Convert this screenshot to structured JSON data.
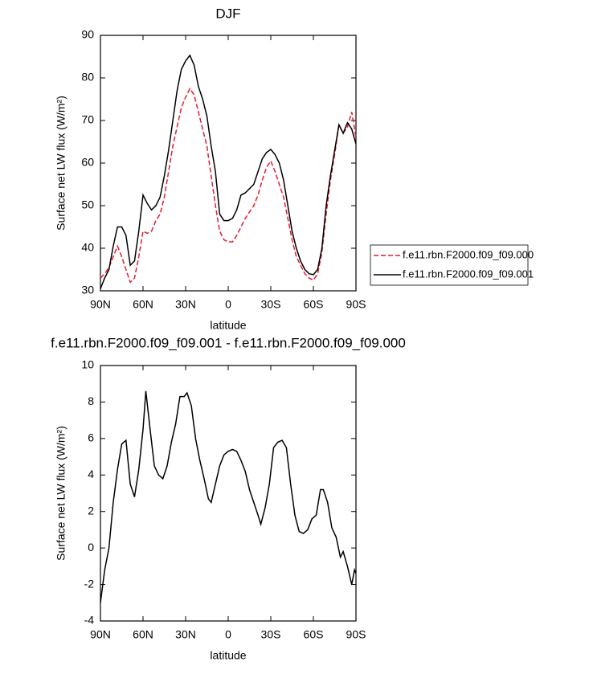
{
  "chart_data": [
    {
      "type": "line",
      "title": "DJF",
      "xlabel": "latitude",
      "ylabel": "Surface net LW flux (W/m²)",
      "xlim": [
        90,
        -90
      ],
      "xticks": [
        {
          "value": 90,
          "label": "90N"
        },
        {
          "value": 60,
          "label": "60N"
        },
        {
          "value": 30,
          "label": "30N"
        },
        0,
        {
          "value": -30,
          "label": "30S"
        },
        {
          "value": -60,
          "label": "60S"
        },
        {
          "value": -90,
          "label": "90S"
        }
      ],
      "ylim": [
        30,
        90
      ],
      "yticks": [
        30,
        40,
        50,
        60,
        70,
        80,
        90
      ],
      "legend_loc": "right outside",
      "x": [
        90,
        87,
        84,
        81,
        78,
        75,
        72,
        69,
        66,
        63,
        60,
        57,
        54,
        51,
        48,
        45,
        42,
        39,
        36,
        33,
        30,
        27,
        24,
        21,
        18,
        15,
        12,
        9,
        6,
        3,
        0,
        -3,
        -6,
        -9,
        -12,
        -15,
        -18,
        -21,
        -24,
        -27,
        -30,
        -33,
        -36,
        -39,
        -42,
        -45,
        -48,
        -51,
        -54,
        -57,
        -60,
        -63,
        -66,
        -69,
        -72,
        -75,
        -78,
        -81,
        -84,
        -87,
        -90
      ],
      "series": [
        {
          "name": "f.e11.rbn.F2000.f09_f09.000",
          "color": "#e8192c",
          "linestyle": "dashed",
          "values": [
            33,
            34,
            35.5,
            38,
            40.5,
            38,
            35,
            32,
            33,
            38,
            44,
            43.5,
            44,
            46.5,
            48,
            52,
            58,
            64,
            68.5,
            73,
            75.5,
            77.5,
            76,
            72,
            68,
            64,
            57,
            50,
            44,
            42,
            41.5,
            41.5,
            43,
            45,
            47,
            48.5,
            50,
            52.5,
            56,
            59,
            60.5,
            58,
            55,
            52,
            47,
            42,
            38,
            36,
            34,
            33,
            32.5,
            34,
            39,
            48,
            56,
            62,
            69,
            67,
            68.5,
            72,
            66
          ]
        },
        {
          "name": "f.e11.rbn.F2000.f09_f09.001",
          "color": "#000000",
          "linestyle": "solid",
          "values": [
            30.5,
            33,
            35,
            40.5,
            45,
            45,
            43,
            36,
            37,
            44,
            52.5,
            50.5,
            49,
            50,
            52,
            57,
            63,
            70,
            77,
            82,
            84,
            85.3,
            83,
            78,
            75,
            71,
            64,
            58,
            48,
            46.5,
            46.5,
            47,
            49,
            52.5,
            53,
            54,
            55,
            58,
            61,
            62.5,
            63.2,
            62,
            60,
            56,
            50,
            44,
            40,
            37,
            35,
            34,
            33.8,
            35,
            40,
            50,
            57,
            63,
            69,
            67,
            69.5,
            68,
            64.5
          ]
        }
      ]
    },
    {
      "type": "line",
      "title": "f.e11.rbn.F2000.f09_f09.001 - f.e11.rbn.F2000.f09_f09.000",
      "xlabel": "latitude",
      "ylabel": "Surface net LW flux (W/m²)",
      "xlim": [
        90,
        -90
      ],
      "xticks": [
        {
          "value": 90,
          "label": "90N"
        },
        {
          "value": 60,
          "label": "60N"
        },
        {
          "value": 30,
          "label": "30N"
        },
        0,
        {
          "value": -30,
          "label": "30S"
        },
        {
          "value": -60,
          "label": "60S"
        },
        {
          "value": -90,
          "label": "90S"
        }
      ],
      "ylim": [
        -4,
        10
      ],
      "yticks": [
        -4,
        -2,
        0,
        2,
        4,
        6,
        8,
        10
      ],
      "x": [
        90,
        87,
        84,
        81,
        78,
        75,
        72,
        69,
        66,
        63,
        60,
        58,
        55,
        52,
        49,
        46,
        43,
        40,
        37,
        34,
        31,
        29,
        26,
        23,
        20,
        17,
        14,
        12,
        9,
        6,
        3,
        0,
        -3,
        -6,
        -9,
        -12,
        -15,
        -18,
        -21,
        -23,
        -26,
        -29,
        -32,
        -35,
        -38,
        -41,
        -44,
        -47,
        -50,
        -53,
        -56,
        -59,
        -62,
        -65,
        -67,
        -70,
        -73,
        -76,
        -79,
        -81,
        -84,
        -87,
        -89,
        -90
      ],
      "series": [
        {
          "color": "#000000",
          "linestyle": "solid",
          "values": [
            -3,
            -1.2,
            0,
            2.5,
            4.3,
            5.7,
            5.9,
            3.5,
            2.8,
            4.3,
            6.5,
            8.6,
            6.5,
            4.5,
            4,
            3.8,
            4.5,
            5.8,
            6.8,
            8.3,
            8.3,
            8.5,
            7.8,
            6,
            4.8,
            3.8,
            2.7,
            2.5,
            3.5,
            4.5,
            5.1,
            5.3,
            5.4,
            5.3,
            4.8,
            4.2,
            3.2,
            2.5,
            1.8,
            1.3,
            2.2,
            3.5,
            5.5,
            5.8,
            5.9,
            5.5,
            3.5,
            1.8,
            0.9,
            0.8,
            1,
            1.6,
            1.8,
            3.2,
            3.2,
            2.5,
            1.1,
            0.6,
            -0.5,
            -0.2,
            -1,
            -2,
            -1.2,
            -1.4
          ]
        }
      ]
    }
  ]
}
